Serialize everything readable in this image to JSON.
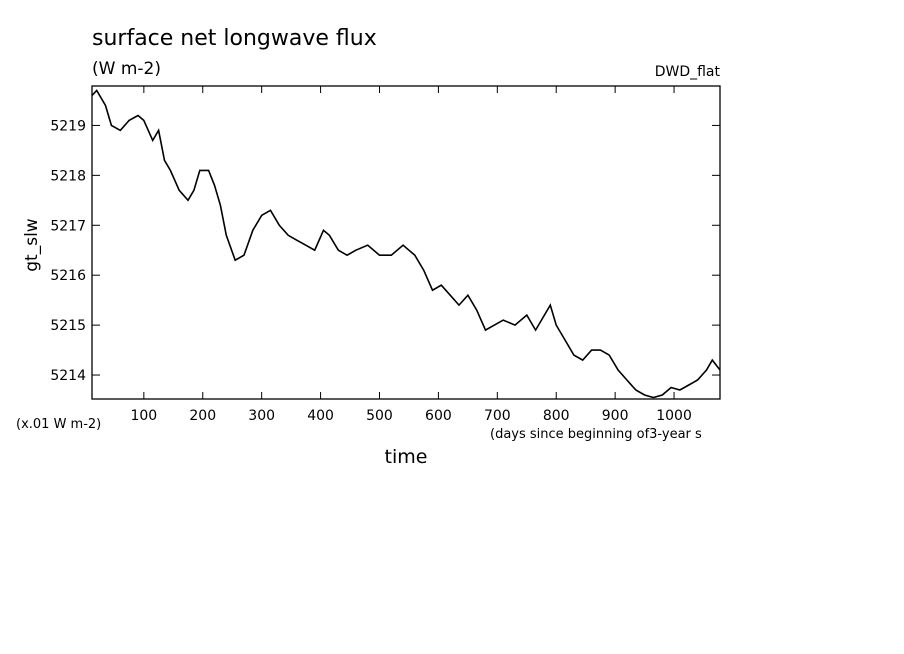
{
  "title": "surface net longwave flux",
  "units": "(W m-2)",
  "model_label": "DWD_flat",
  "ylabel": "gt_slw",
  "yscale_note": "(x.01 W m-2)",
  "xlabel": "time",
  "xunits_note": "(days since beginning of3-year s",
  "colors": {
    "line": "#000000",
    "background": "#ffffff"
  },
  "chart_data": {
    "type": "line",
    "title": "surface net longwave flux",
    "xlabel": "time",
    "ylabel": "gt_slw",
    "xlim": [
      12,
      1078
    ],
    "ylim": [
      5213.52,
      5219.79
    ],
    "grid": false,
    "legend": "none",
    "x_ticks": [
      100,
      200,
      300,
      400,
      500,
      600,
      700,
      800,
      900,
      1000
    ],
    "y_ticks": [
      5214,
      5215,
      5216,
      5217,
      5218,
      5219
    ],
    "series": [
      {
        "x": [
          12,
          20,
          35,
          45,
          60,
          75,
          90,
          100,
          115,
          125,
          135,
          145,
          160,
          175,
          185,
          195,
          210,
          220,
          230,
          240,
          255,
          270,
          285,
          300,
          315,
          330,
          345,
          360,
          375,
          390,
          405,
          415,
          430,
          445,
          460,
          480,
          500,
          520,
          540,
          550,
          560,
          575,
          590,
          605,
          620,
          635,
          650,
          665,
          680,
          695,
          710,
          730,
          750,
          765,
          780,
          790,
          800,
          815,
          830,
          845,
          860,
          875,
          890,
          905,
          920,
          935,
          950,
          965,
          980,
          995,
          1010,
          1025,
          1040,
          1055,
          1065,
          1078
        ],
        "y": [
          5219.6,
          5219.7,
          5219.4,
          5219.0,
          5218.9,
          5219.1,
          5219.2,
          5219.1,
          5218.7,
          5218.9,
          5218.3,
          5218.1,
          5217.7,
          5217.5,
          5217.7,
          5218.1,
          5218.1,
          5217.8,
          5217.4,
          5216.8,
          5216.3,
          5216.4,
          5216.9,
          5217.2,
          5217.3,
          5217.0,
          5216.8,
          5216.7,
          5216.6,
          5216.5,
          5216.9,
          5216.8,
          5216.5,
          5216.4,
          5216.5,
          5216.6,
          5216.4,
          5216.4,
          5216.6,
          5216.5,
          5216.4,
          5216.1,
          5215.7,
          5215.8,
          5215.6,
          5215.4,
          5215.6,
          5215.3,
          5214.9,
          5215.0,
          5215.1,
          5215.0,
          5215.2,
          5214.9,
          5215.2,
          5215.4,
          5215.0,
          5214.7,
          5214.4,
          5214.3,
          5214.5,
          5214.5,
          5214.4,
          5214.1,
          5213.9,
          5213.7,
          5213.6,
          5213.55,
          5213.6,
          5213.75,
          5213.7,
          5213.8,
          5213.9,
          5214.1,
          5214.3,
          5214.1
        ]
      }
    ]
  }
}
